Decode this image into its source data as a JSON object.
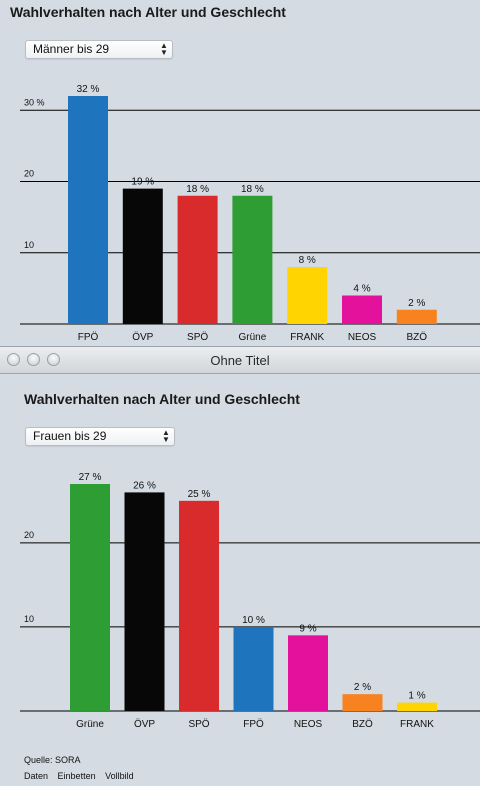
{
  "window": {
    "title": "Ohne Titel"
  },
  "top": {
    "title": "Wahlverhalten nach Alter und Geschlecht",
    "selector": {
      "value": "Männer bis 29"
    }
  },
  "bottom": {
    "title": "Wahlverhalten nach Alter und Geschlecht",
    "selector": {
      "value": "Frauen bis 29"
    },
    "source": "Quelle: SORA",
    "links": [
      "Daten",
      "Einbetten",
      "Vollbild"
    ]
  },
  "chart_data": [
    {
      "type": "bar",
      "categories": [
        "FPÖ",
        "ÖVP",
        "SPÖ",
        "Grüne",
        "FRANK",
        "NEOS",
        "BZÖ"
      ],
      "values": [
        32,
        19,
        18,
        18,
        8,
        4,
        2
      ],
      "labels": [
        "32 %",
        "19 %",
        "18 %",
        "18 %",
        "8 %",
        "4 %",
        "2 %"
      ],
      "colors": [
        "#1f75bd",
        "#070707",
        "#d92b2b",
        "#2e9e34",
        "#ffd400",
        "#e3119b",
        "#f7821f"
      ],
      "yticks": [
        "10",
        "20",
        "30 %"
      ],
      "ylim": [
        0,
        32
      ]
    },
    {
      "type": "bar",
      "categories": [
        "Grüne",
        "ÖVP",
        "SPÖ",
        "FPÖ",
        "NEOS",
        "BZÖ",
        "FRANK"
      ],
      "values": [
        27,
        26,
        25,
        10,
        9,
        2,
        1
      ],
      "labels": [
        "27 %",
        "26 %",
        "25 %",
        "10 %",
        "9 %",
        "2 %",
        "1 %"
      ],
      "colors": [
        "#2e9e34",
        "#070707",
        "#d92b2b",
        "#1f75bd",
        "#e3119b",
        "#f7821f",
        "#ffd400"
      ],
      "yticks": [
        "10",
        "20"
      ],
      "ylim": [
        0,
        27
      ]
    }
  ]
}
